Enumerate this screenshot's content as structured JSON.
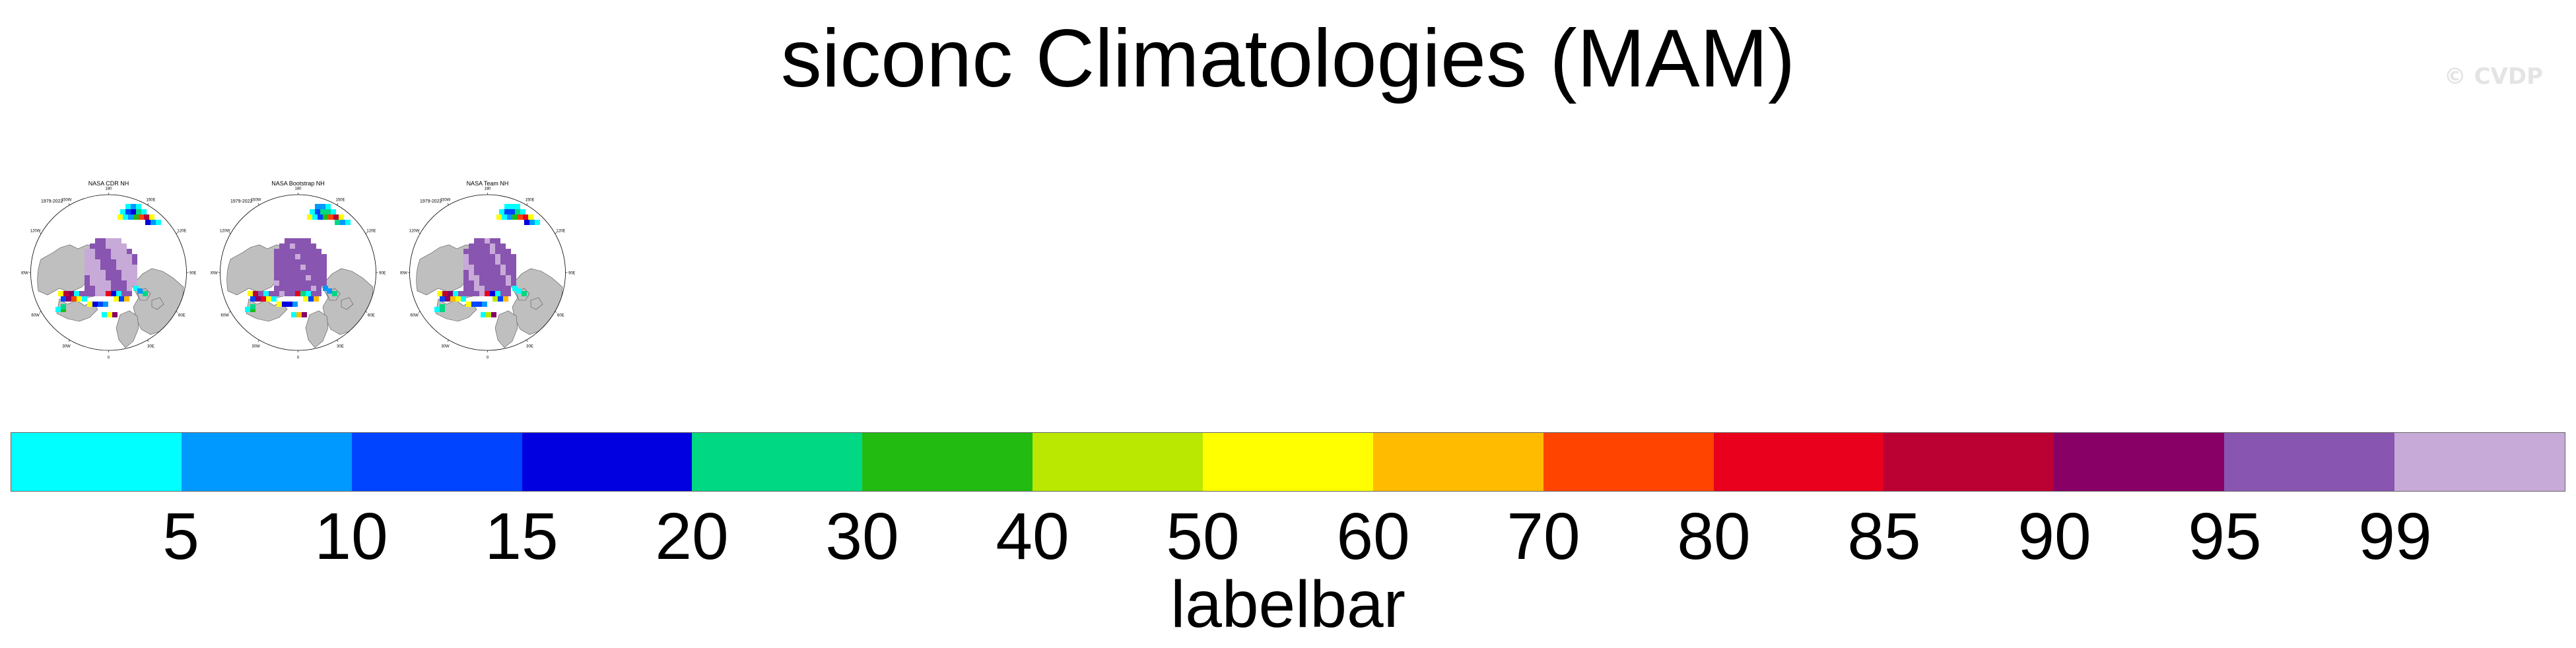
{
  "figure": {
    "title": "siconc Climatologies (MAM)",
    "watermark": "© CVDP"
  },
  "panels": [
    {
      "title": "NASA CDR NH",
      "years": "1979-2022"
    },
    {
      "title": "NASA Bootstrap NH",
      "years": "1979-2022"
    },
    {
      "title": "NASA Team NH",
      "years": "1979-2022"
    }
  ],
  "map_style": {
    "projection": "north-polar-stereographic",
    "land_color": "#bfbfbf",
    "ocean_color": "#ffffff",
    "longitude_labels": [
      "0",
      "30E",
      "60E",
      "90E",
      "120E",
      "150E",
      "180",
      "150W",
      "120W",
      "90W",
      "60W",
      "30W"
    ]
  },
  "labelbar": {
    "title": "labelbar",
    "colors": [
      "#00ffff",
      "#0099ff",
      "#0044ff",
      "#0000e0",
      "#00d884",
      "#22bb11",
      "#bbe800",
      "#ffff00",
      "#ffbb00",
      "#ff4400",
      "#e8001c",
      "#bb0033",
      "#880066",
      "#8855b0",
      "#c8aad8"
    ],
    "tick_labels": [
      "5",
      "10",
      "15",
      "20",
      "30",
      "40",
      "50",
      "60",
      "70",
      "80",
      "85",
      "90",
      "95",
      "99"
    ]
  }
}
